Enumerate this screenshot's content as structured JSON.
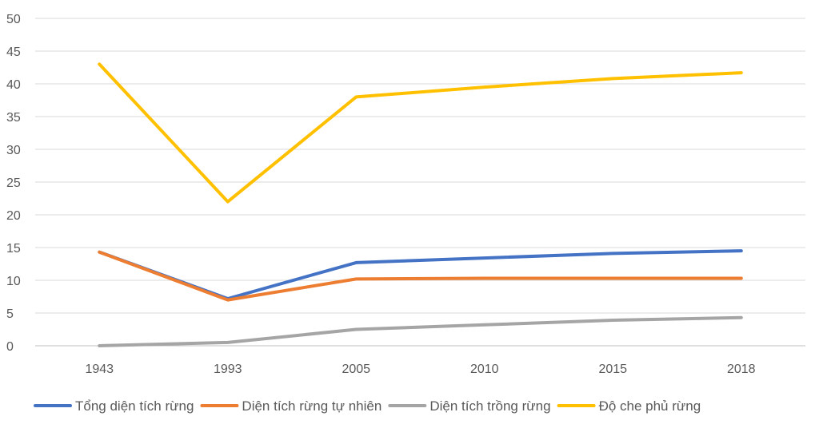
{
  "chart_data": {
    "type": "line",
    "title": "",
    "xlabel": "",
    "ylabel": "",
    "categories": [
      "1943",
      "1993",
      "2005",
      "2010",
      "2015",
      "2018"
    ],
    "ylim": [
      0,
      50
    ],
    "yticks": [
      "0",
      "5",
      "10",
      "15",
      "20",
      "25",
      "30",
      "35",
      "40",
      "45",
      "50"
    ],
    "grid": true,
    "legend_position": "bottom",
    "series": [
      {
        "name": "Tổng diện tích rừng",
        "color": "#4472C4",
        "values": [
          14.3,
          7.2,
          12.7,
          13.4,
          14.1,
          14.5
        ]
      },
      {
        "name": "Diện tích rừng tự nhiên",
        "color": "#ED7D31",
        "values": [
          14.3,
          7.0,
          10.2,
          10.3,
          10.3,
          10.3
        ]
      },
      {
        "name": "Diện tích trồng rừng",
        "color": "#A5A5A5",
        "values": [
          0.0,
          0.5,
          2.5,
          3.2,
          3.9,
          4.3
        ]
      },
      {
        "name": "Độ che phủ rừng",
        "color": "#FFC000",
        "values": [
          43.0,
          22.0,
          38.0,
          39.5,
          40.8,
          41.7
        ]
      }
    ]
  }
}
